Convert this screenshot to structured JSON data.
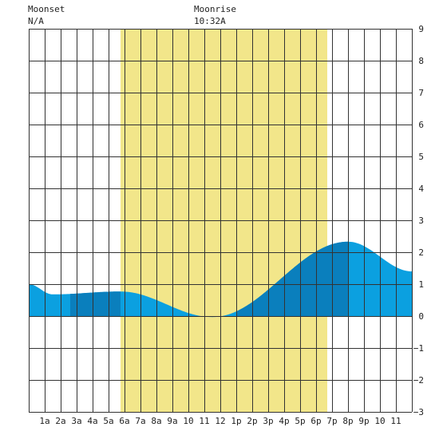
{
  "header": {
    "moonset_label": "Moonset",
    "moonset_time": "N/A",
    "moonrise_label": "Moonrise",
    "moonrise_time": "10:32A"
  },
  "chart_data": {
    "type": "area",
    "title": "",
    "xlabel": "",
    "ylabel": "",
    "xlim": [
      0,
      24
    ],
    "ylim": [
      -3,
      9
    ],
    "grid": true,
    "x_tick_labels": [
      {
        "x": 1,
        "label": "1a"
      },
      {
        "x": 2,
        "label": "2a"
      },
      {
        "x": 3,
        "label": "3a"
      },
      {
        "x": 4,
        "label": "4a"
      },
      {
        "x": 5,
        "label": "5a"
      },
      {
        "x": 6,
        "label": "6a"
      },
      {
        "x": 7,
        "label": "7a"
      },
      {
        "x": 8,
        "label": "8a"
      },
      {
        "x": 9,
        "label": "9a"
      },
      {
        "x": 10,
        "label": "10"
      },
      {
        "x": 11,
        "label": "11"
      },
      {
        "x": 12,
        "label": "12"
      },
      {
        "x": 13,
        "label": "1p"
      },
      {
        "x": 14,
        "label": "2p"
      },
      {
        "x": 15,
        "label": "3p"
      },
      {
        "x": 16,
        "label": "4p"
      },
      {
        "x": 17,
        "label": "5p"
      },
      {
        "x": 18,
        "label": "6p"
      },
      {
        "x": 19,
        "label": "7p"
      },
      {
        "x": 20,
        "label": "8p"
      },
      {
        "x": 21,
        "label": "9p"
      },
      {
        "x": 22,
        "label": "10"
      },
      {
        "x": 23,
        "label": "11"
      }
    ],
    "y_ticks": [
      -3,
      -2,
      -1,
      0,
      1,
      2,
      3,
      4,
      5,
      6,
      7,
      8,
      9
    ],
    "daylight": {
      "start": 5.75,
      "end": 18.7,
      "color": "#f2e68a"
    },
    "colors": {
      "tide": "#0ba0e0",
      "tide_dark": "#0a7fbd",
      "grid": "#333333"
    },
    "dark_bands": [
      {
        "start": 2.6,
        "end": 5.75
      },
      {
        "start": 13.0,
        "end": 20.0
      }
    ],
    "tide_curve": [
      {
        "x": 0,
        "y": 1.0
      },
      {
        "x": 1.5,
        "y": 0.68
      },
      {
        "x": 5.75,
        "y": 0.77
      },
      {
        "x": 11.5,
        "y": -0.03
      },
      {
        "x": 20.0,
        "y": 2.33
      },
      {
        "x": 24,
        "y": 1.4
      }
    ]
  }
}
